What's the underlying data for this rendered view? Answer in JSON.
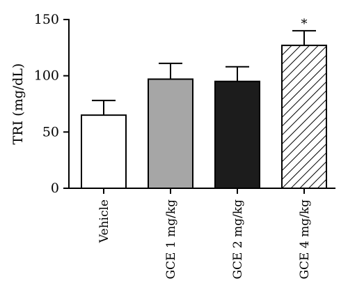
{
  "chart_data": {
    "type": "bar",
    "title": "",
    "xlabel": "",
    "ylabel": "TRI (mg/dL)",
    "ylim": [
      0,
      150
    ],
    "yticks": [
      0,
      50,
      100,
      150
    ],
    "categories": [
      "Vehicle",
      "GCE 1 mg/kg",
      "GCE 2 mg/kg",
      "GCE 4 mg/kg"
    ],
    "values": [
      65,
      97,
      95,
      127
    ],
    "errors": [
      13,
      14,
      13,
      13
    ],
    "annotations": [
      "",
      "",
      "",
      "*"
    ],
    "bar_styles": [
      {
        "fill": "#ffffff",
        "pattern": "none"
      },
      {
        "fill": "#a6a6a6",
        "pattern": "none"
      },
      {
        "fill": "#1c1c1c",
        "pattern": "none"
      },
      {
        "fill": "#ffffff",
        "pattern": "diagonal-hatch"
      }
    ],
    "grid": false
  }
}
